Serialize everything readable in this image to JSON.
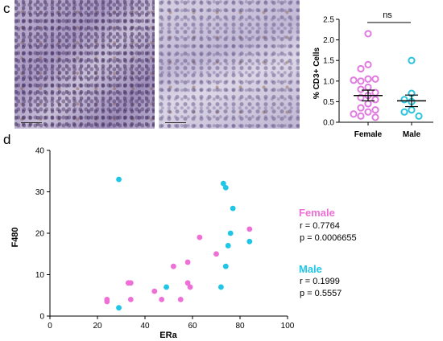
{
  "panel_c": {
    "letter": "c",
    "chart_data": {
      "type": "scatter",
      "ylabel": "% CD3+ Cells",
      "ylim": [
        0,
        2.5
      ],
      "yticks": [
        "0.0",
        "0.5",
        "1.0",
        "1.5",
        "2.0",
        "2.5"
      ],
      "categories": [
        "Female",
        "Male"
      ],
      "significance": "ns",
      "series": [
        {
          "name": "Female",
          "color": "#e07be0",
          "values": [
            2.15,
            1.4,
            1.3,
            1.05,
            1.0,
            1.05,
            1.02,
            0.85,
            0.8,
            0.72,
            0.65,
            0.6,
            0.55,
            0.45,
            0.35,
            0.3,
            0.25,
            0.2,
            0.15,
            0.12
          ],
          "mean": 0.65,
          "sem_low": 0.52,
          "sem_high": 0.78
        },
        {
          "name": "Male",
          "color": "#2cc3dd",
          "values": [
            1.5,
            0.7,
            0.55,
            0.5,
            0.3,
            0.25,
            0.15
          ],
          "mean": 0.52,
          "sem_low": 0.38,
          "sem_high": 0.66
        }
      ]
    }
  },
  "panel_d": {
    "letter": "d",
    "chart_data": {
      "type": "scatter",
      "xlabel": "ERa",
      "ylabel": "F480",
      "xlim": [
        0,
        100
      ],
      "ylim": [
        0,
        40
      ],
      "xticks": [
        "0",
        "20",
        "40",
        "60",
        "80",
        "100"
      ],
      "yticks": [
        "0",
        "10",
        "20",
        "30",
        "40"
      ],
      "series": [
        {
          "name": "Female",
          "color": "#ee6fd6",
          "points": [
            [
              24,
              4
            ],
            [
              24,
              3.5
            ],
            [
              33,
              8
            ],
            [
              34,
              8
            ],
            [
              34,
              4
            ],
            [
              44,
              6
            ],
            [
              47,
              4
            ],
            [
              52,
              12
            ],
            [
              55,
              4
            ],
            [
              58,
              8
            ],
            [
              58,
              13
            ],
            [
              59,
              7
            ],
            [
              63,
              19
            ],
            [
              70,
              15
            ],
            [
              84,
              21
            ]
          ],
          "stats": [
            "r = 0.7764",
            "p = 0.0006655"
          ]
        },
        {
          "name": "Male",
          "color": "#1fc6e6",
          "points": [
            [
              29,
              33
            ],
            [
              29,
              2
            ],
            [
              49,
              7
            ],
            [
              72,
              7
            ],
            [
              73,
              32
            ],
            [
              74,
              31
            ],
            [
              74,
              12
            ],
            [
              75,
              17
            ],
            [
              76,
              20
            ],
            [
              77,
              26
            ],
            [
              84,
              18
            ]
          ],
          "stats": [
            "r = 0.1999",
            "p = 0.5557"
          ]
        }
      ]
    }
  }
}
